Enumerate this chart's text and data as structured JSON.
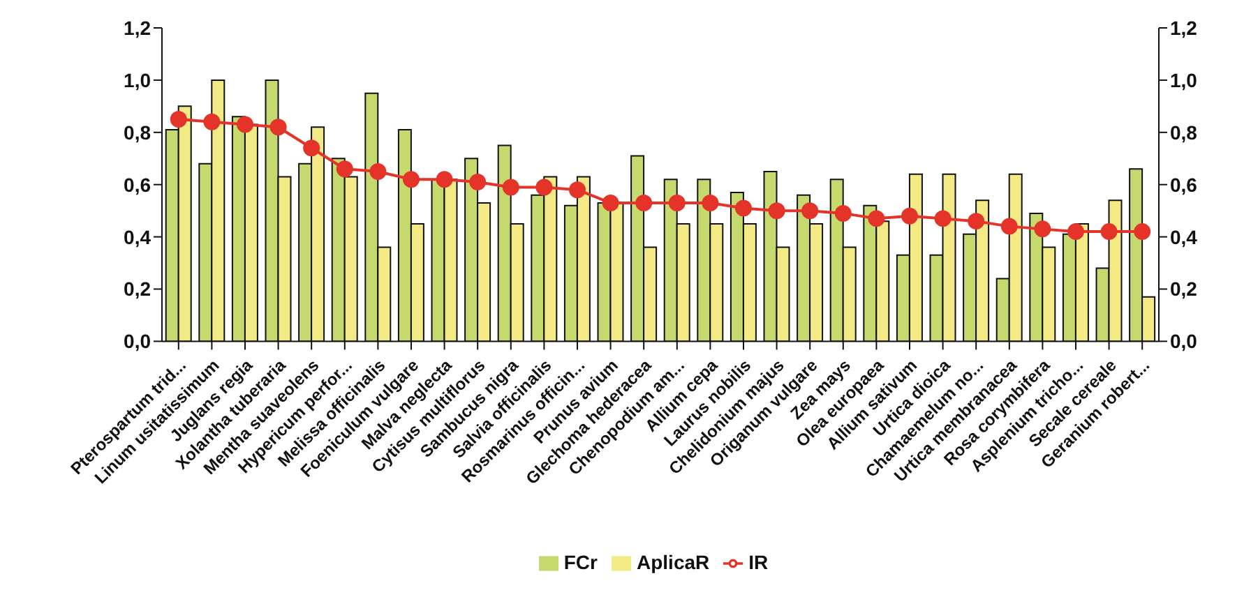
{
  "chart_data": {
    "type": "bar",
    "categories": [
      "Pterospartum trid...",
      "Linum usitatissimum",
      "Juglans regia",
      "Xolantha tuberaria",
      "Mentha  suaveolens",
      "Hypericum perfor...",
      "Melissa officinalis",
      "Foeniculum vulgare",
      "Malva neglecta",
      "Cytisus multiflorus",
      "Sambucus nigra",
      "Salvia officinalis",
      "Rosmarinus officin...",
      "Prunus avium",
      "Glechoma hederacea",
      "Chenopodium am...",
      "Allium cepa",
      "Laurus nobilis",
      "Chelidonium majus",
      "Origanum vulgare",
      "Zea mays",
      "Olea europaea",
      "Allium sativum",
      "Urtica dioica",
      "Chamaemelum no...",
      "Urtica membranacea",
      "Rosa corymbifera",
      "Asplenium tricho...",
      "Secale cereale",
      "Geranium robert..."
    ],
    "series": [
      {
        "name": "FCr",
        "color": "#c5d96e",
        "values": [
          0.81,
          0.68,
          0.86,
          1.0,
          0.68,
          0.7,
          0.95,
          0.81,
          0.62,
          0.7,
          0.75,
          0.56,
          0.52,
          0.53,
          0.71,
          0.62,
          0.62,
          0.57,
          0.65,
          0.56,
          0.62,
          0.52,
          0.33,
          0.33,
          0.41,
          0.24,
          0.49,
          0.41,
          0.28,
          0.66
        ]
      },
      {
        "name": "AplicaR",
        "color": "#f3ea86",
        "values": [
          0.9,
          1.0,
          0.83,
          0.63,
          0.82,
          0.63,
          0.36,
          0.45,
          0.62,
          0.53,
          0.45,
          0.63,
          0.63,
          0.53,
          0.36,
          0.45,
          0.45,
          0.45,
          0.36,
          0.45,
          0.36,
          0.46,
          0.64,
          0.64,
          0.54,
          0.64,
          0.36,
          0.45,
          0.54,
          0.17
        ]
      },
      {
        "name": "IR",
        "type": "line",
        "color": "#e4342a",
        "values": [
          0.85,
          0.84,
          0.83,
          0.82,
          0.74,
          0.66,
          0.65,
          0.62,
          0.62,
          0.61,
          0.59,
          0.59,
          0.58,
          0.53,
          0.53,
          0.53,
          0.53,
          0.51,
          0.5,
          0.5,
          0.49,
          0.47,
          0.48,
          0.47,
          0.46,
          0.44,
          0.43,
          0.42,
          0.42,
          0.42
        ]
      }
    ],
    "ylim": [
      0,
      1.2
    ],
    "yticks": [
      {
        "value": 0,
        "label": "0,0"
      },
      {
        "value": 0.2,
        "label": "0,2"
      },
      {
        "value": 0.4,
        "label": "0,4"
      },
      {
        "value": 0.6,
        "label": "0,6"
      },
      {
        "value": 0.8,
        "label": "0,8"
      },
      {
        "value": 1.0,
        "label": "1,0"
      },
      {
        "value": 1.2,
        "label": "1,2"
      }
    ],
    "y2lim": [
      0,
      1.2
    ],
    "y2ticks": [
      {
        "value": 0,
        "label": "0,0"
      },
      {
        "value": 0.2,
        "label": "0,2"
      },
      {
        "value": 0.4,
        "label": "0,4"
      },
      {
        "value": 0.6,
        "label": "0,6"
      },
      {
        "value": 0.8,
        "label": "0,8"
      },
      {
        "value": 1.0,
        "label": "1,0"
      },
      {
        "value": 1.2,
        "label": "1,2"
      }
    ],
    "grid": false,
    "legend": "bottom",
    "marker": "circle",
    "line_style": "solid"
  }
}
